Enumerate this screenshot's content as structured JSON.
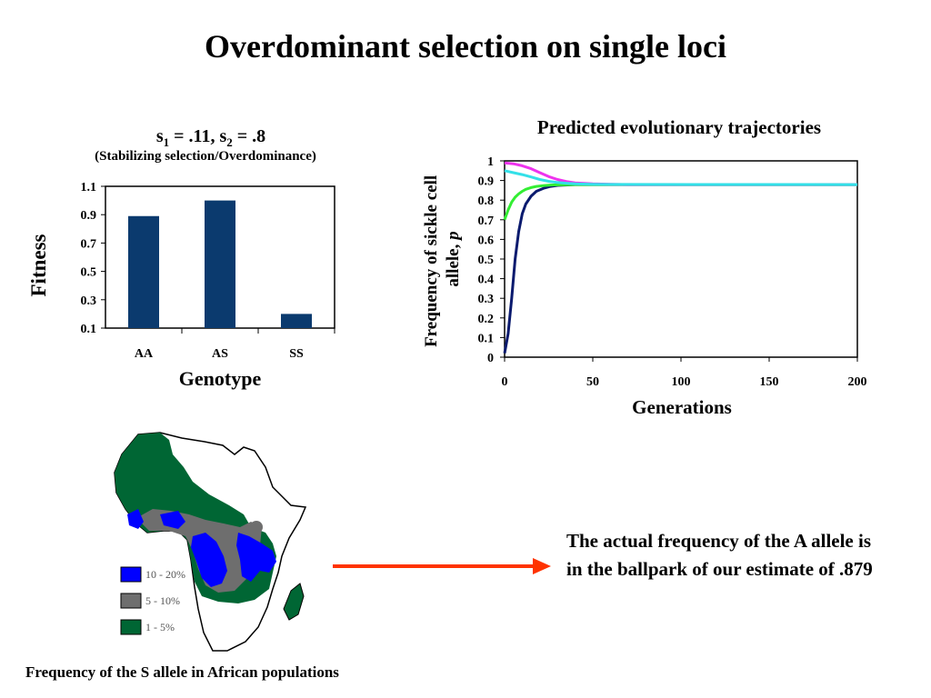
{
  "slide": {
    "title": "Overdominant selection on single loci",
    "note": "The actual frequency of the A allele is in the ballpark of our estimate of .879",
    "map_caption": "Frequency of the S allele in African populations"
  },
  "map": {
    "legend": [
      {
        "label": "10 - 20%",
        "color": "#0000ff"
      },
      {
        "label": "5 - 10%",
        "color": "#6e6e6e"
      },
      {
        "label": "1 - 5%",
        "color": "#006634"
      }
    ],
    "arrow_color": "#ff3300"
  },
  "chart_data": [
    {
      "type": "bar",
      "title_parts": [
        "s",
        "1",
        " = .11, s",
        "2",
        " = .8"
      ],
      "subtitle": "(Stabilizing selection/Overdominance)",
      "xlabel": "Genotype",
      "ylabel": "Fitness",
      "categories": [
        "AA",
        "AS",
        "SS"
      ],
      "values": [
        0.89,
        1.0,
        0.2
      ],
      "ylim": [
        0.1,
        1.1
      ],
      "yticks": [
        "1.1",
        "0.9",
        "0.7",
        "0.5",
        "0.3",
        "0.1"
      ],
      "bar_color": "#0b3a6e",
      "grid": false
    },
    {
      "type": "line",
      "title": "Predicted evolutionary trajectories",
      "xlabel": "Generations",
      "ylabel_parts": [
        "Frequency of sickle cell",
        "allele, ",
        "p"
      ],
      "xlim": [
        0,
        200
      ],
      "ylim": [
        0,
        1
      ],
      "xticks": [
        "0",
        "50",
        "100",
        "150",
        "200"
      ],
      "yticks": [
        "1",
        "0.9",
        "0.8",
        "0.7",
        "0.6",
        "0.5",
        "0.4",
        "0.3",
        "0.2",
        "0.1",
        "0"
      ],
      "grid": false,
      "equilibrium": 0.879,
      "series": [
        {
          "start": 0.02,
          "color": "#0a1a6e",
          "x": [
            0,
            2,
            4,
            6,
            8,
            10,
            12,
            15,
            18,
            22,
            26,
            30,
            40,
            200
          ],
          "values": [
            0.02,
            0.12,
            0.3,
            0.5,
            0.64,
            0.73,
            0.78,
            0.82,
            0.845,
            0.86,
            0.87,
            0.875,
            0.879,
            0.879
          ]
        },
        {
          "start": 0.7,
          "color": "#33ee33",
          "x": [
            0,
            2,
            4,
            6,
            8,
            10,
            12,
            15,
            18,
            22,
            26,
            30,
            40,
            200
          ],
          "values": [
            0.7,
            0.75,
            0.79,
            0.815,
            0.832,
            0.845,
            0.855,
            0.864,
            0.87,
            0.874,
            0.877,
            0.878,
            0.879,
            0.879
          ]
        },
        {
          "start": 0.99,
          "color": "#ee33ee",
          "x": [
            0,
            5,
            10,
            15,
            20,
            25,
            30,
            35,
            40,
            50,
            60,
            70,
            200
          ],
          "values": [
            0.99,
            0.985,
            0.975,
            0.96,
            0.94,
            0.92,
            0.905,
            0.895,
            0.888,
            0.883,
            0.881,
            0.879,
            0.879
          ]
        },
        {
          "start": 0.95,
          "color": "#33e0e8",
          "x": [
            0,
            5,
            10,
            15,
            20,
            25,
            30,
            35,
            40,
            50,
            60,
            200
          ],
          "values": [
            0.95,
            0.94,
            0.93,
            0.918,
            0.905,
            0.896,
            0.89,
            0.886,
            0.883,
            0.881,
            0.88,
            0.879
          ]
        }
      ]
    }
  ]
}
